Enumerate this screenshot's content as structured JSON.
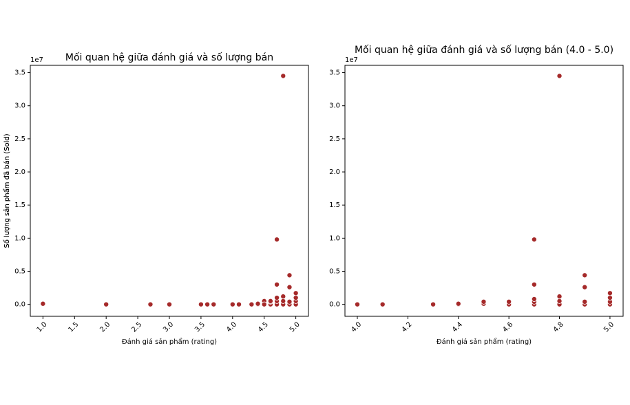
{
  "chart_data": [
    {
      "type": "scatter",
      "title": "Mối quan hệ giữa đánh giá và số lượng bán",
      "xlabel": "Đánh giá sản phẩm (rating)",
      "ylabel": "Số lượng sản phẩm đã bán (Sold)",
      "y_offset_label": "1e7",
      "color": "#a52a2a",
      "x": [
        1.0,
        2.0,
        2.7,
        3.0,
        3.5,
        3.6,
        3.7,
        4.0,
        4.1,
        4.3,
        4.4,
        4.4,
        4.5,
        4.5,
        4.5,
        4.6,
        4.6,
        4.6,
        4.7,
        4.7,
        4.7,
        4.7,
        4.7,
        4.8,
        4.8,
        4.8,
        4.8,
        4.9,
        4.9,
        4.9,
        4.9,
        5.0,
        5.0,
        5.0,
        5.0
      ],
      "y": [
        0.01,
        0,
        0,
        0,
        0,
        0,
        0,
        0,
        0,
        0,
        0,
        0.01,
        0.03,
        0.05,
        0,
        0,
        0.04,
        0.05,
        0,
        0.05,
        0.1,
        0.3,
        0.98,
        0,
        0.05,
        0.12,
        3.45,
        0,
        0.04,
        0.26,
        0.44,
        0,
        0.05,
        0.1,
        0.17
      ],
      "xlim": [
        0.8,
        5.2
      ],
      "ylim": [
        -0.18,
        3.61
      ],
      "xticks": [
        {
          "value": 1,
          "label": "1.0"
        },
        1.5,
        {
          "value": 2,
          "label": "2.0"
        },
        2.5,
        {
          "value": 3,
          "label": "3.0"
        },
        3.5,
        {
          "value": 4,
          "label": "4.0"
        },
        4.5,
        {
          "value": 5,
          "label": "5.0"
        }
      ],
      "yticks": [
        {
          "value": 0,
          "label": "0.0"
        },
        0.5,
        {
          "value": 1,
          "label": "1.0"
        },
        1.5,
        {
          "value": 2,
          "label": "2.0"
        },
        2.5,
        {
          "value": 3,
          "label": "3.0"
        },
        3.5
      ]
    },
    {
      "type": "scatter",
      "title": "Mối quan hệ giữa đánh giá và số lượng bán (4.0 - 5.0)",
      "xlabel": "Đánh giá sản phẩm (rating)",
      "ylabel": "Số lượng sản phẩm đã bán (Sold)",
      "y_offset_label": "1e7",
      "color": "#a52a2a",
      "x": [
        4.0,
        4.1,
        4.3,
        4.4,
        4.4,
        4.5,
        4.5,
        4.6,
        4.6,
        4.7,
        4.7,
        4.7,
        4.7,
        4.7,
        4.8,
        4.8,
        4.8,
        4.8,
        4.9,
        4.9,
        4.9,
        4.9,
        5.0,
        5.0,
        5.0,
        5.0
      ],
      "y": [
        0,
        0,
        0,
        0,
        0.01,
        0.01,
        0.04,
        0,
        0.04,
        0,
        0.04,
        0.08,
        0.3,
        0.98,
        0,
        0.05,
        0.12,
        3.45,
        0,
        0.04,
        0.26,
        0.44,
        0,
        0.04,
        0.1,
        0.17
      ],
      "xlim": [
        3.951,
        5.052
      ],
      "ylim": [
        -0.18,
        3.61
      ],
      "xticks": [
        {
          "value": 4,
          "label": "4.0"
        },
        4.2,
        4.4,
        4.6,
        4.8,
        {
          "value": 5,
          "label": "5.0"
        }
      ],
      "yticks": [
        {
          "value": 0,
          "label": "0.0"
        },
        0.5,
        {
          "value": 1,
          "label": "1.0"
        },
        1.5,
        {
          "value": 2,
          "label": "2.0"
        },
        2.5,
        {
          "value": 3,
          "label": "3.0"
        },
        3.5
      ]
    }
  ]
}
